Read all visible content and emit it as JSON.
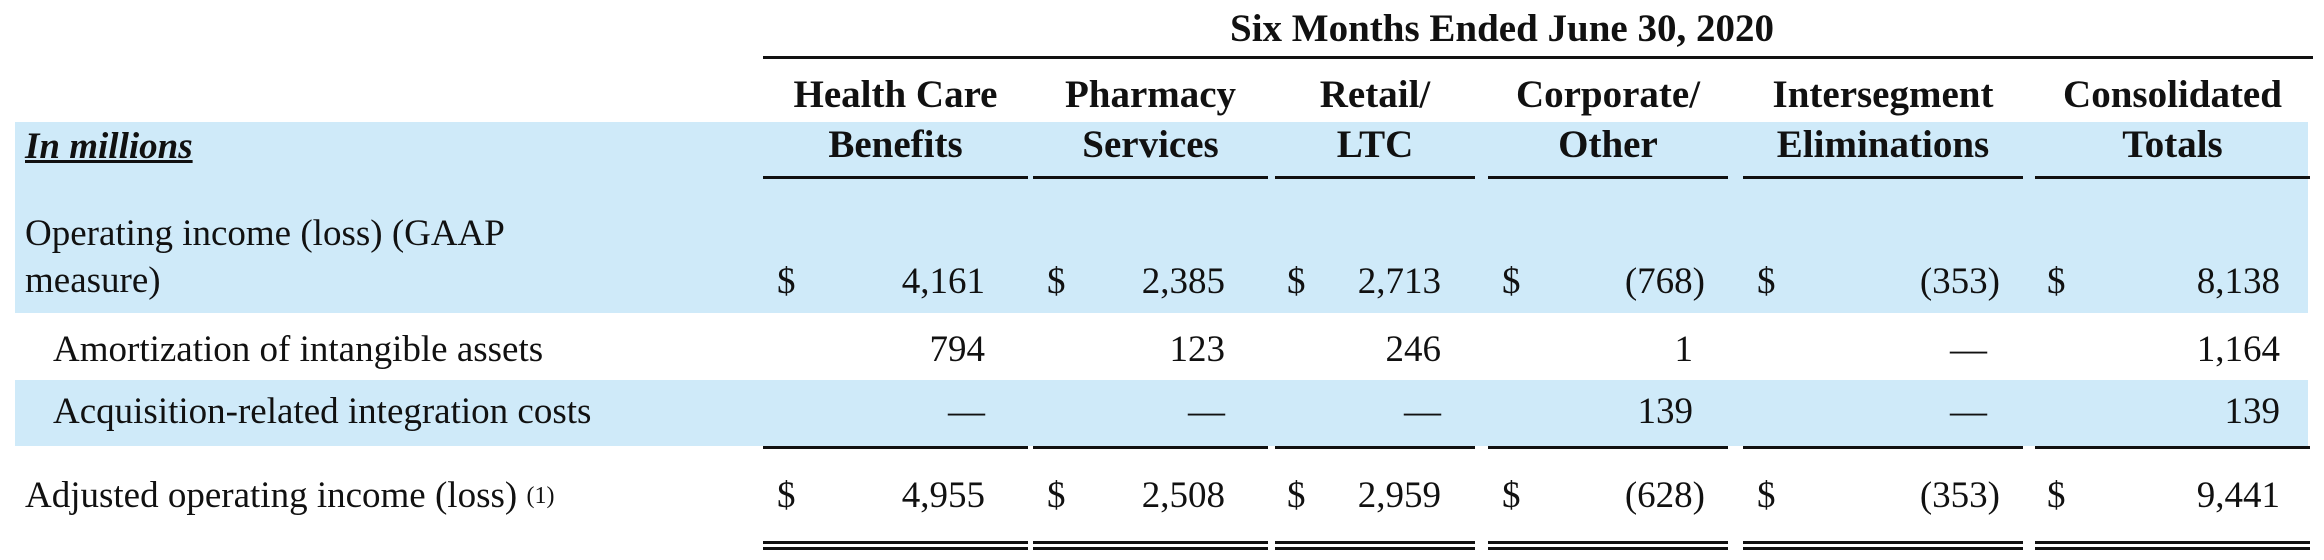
{
  "table": {
    "units_label": "In millions",
    "period_header": "Six Months Ended June 30, 2020",
    "columns": [
      {
        "line1": "Health Care",
        "line2": "Benefits"
      },
      {
        "line1": "Pharmacy",
        "line2": "Services"
      },
      {
        "line1": "Retail/",
        "line2": "LTC"
      },
      {
        "line1": "Corporate/",
        "line2": "Other"
      },
      {
        "line1": "Intersegment",
        "line2": "Eliminations"
      },
      {
        "line1": "Consolidated",
        "line2": "Totals"
      }
    ],
    "rows": [
      {
        "label_line1": "Operating income (loss) (GAAP",
        "label_line2": "measure)",
        "currency": "$",
        "values": [
          "4,161",
          "2,385",
          "2,713",
          "(768)",
          "(353)",
          "8,138"
        ]
      },
      {
        "label": "Amortization of intangible assets",
        "values": [
          "794",
          "123",
          "246",
          "1",
          "—",
          "1,164"
        ]
      },
      {
        "label": "Acquisition-related integration costs",
        "values": [
          "—",
          "—",
          "—",
          "139",
          "—",
          "139"
        ]
      },
      {
        "label": "Adjusted operating income (loss)",
        "footnote": "(1)",
        "currency": "$",
        "values": [
          "4,955",
          "2,508",
          "2,959",
          "(628)",
          "(353)",
          "9,441"
        ]
      }
    ]
  }
}
